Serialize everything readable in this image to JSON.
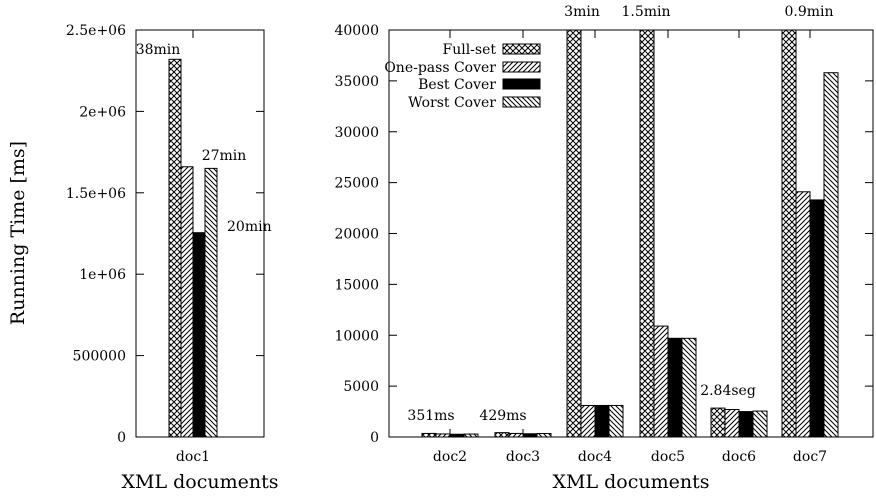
{
  "chart_data": [
    {
      "type": "bar",
      "panel": "left",
      "xlabel": "XML documents",
      "ylabel": "Running Time [ms]",
      "ylim": [
        0,
        2500000
      ],
      "yticks": [
        "0",
        "500000",
        "1e+06",
        "1.5e+06",
        "2e+06",
        "2.5e+06"
      ],
      "ytick_values": [
        0,
        500000,
        1000000,
        1500000,
        2000000,
        2500000
      ],
      "categories": [
        "doc1"
      ],
      "series": [
        {
          "name": "Full-set",
          "values": [
            2320000
          ]
        },
        {
          "name": "One-pass Cover",
          "values": [
            1660000
          ]
        },
        {
          "name": "Best Cover",
          "values": [
            1255000
          ]
        },
        {
          "name": "Worst Cover",
          "values": [
            1650000
          ]
        }
      ],
      "annotations": [
        "38min",
        "27min",
        "20min"
      ]
    },
    {
      "type": "bar",
      "panel": "right",
      "xlabel": "XML documents",
      "ylim": [
        0,
        40000
      ],
      "yticks": [
        "0",
        "5000",
        "10000",
        "15000",
        "20000",
        "25000",
        "30000",
        "35000",
        "40000"
      ],
      "ytick_values": [
        0,
        5000,
        10000,
        15000,
        20000,
        25000,
        30000,
        35000,
        40000
      ],
      "categories": [
        "doc2",
        "doc3",
        "doc4",
        "doc5",
        "doc6",
        "doc7"
      ],
      "series": [
        {
          "name": "Full-set",
          "values": [
            351,
            429,
            40000,
            40000,
            2840,
            40000
          ]
        },
        {
          "name": "One-pass Cover",
          "values": [
            300,
            350,
            3100,
            10900,
            2700,
            24100
          ]
        },
        {
          "name": "Best Cover",
          "values": [
            270,
            320,
            3100,
            9700,
            2500,
            23300
          ]
        },
        {
          "name": "Worst Cover",
          "values": [
            290,
            340,
            3100,
            9700,
            2550,
            35800
          ]
        }
      ],
      "legend": [
        "Full-set",
        "One-pass Cover",
        "Best Cover",
        "Worst Cover"
      ],
      "legend_position": "top-left",
      "annotations": [
        "351ms",
        "429ms",
        "3min",
        "1.5min",
        "2.84seg",
        "0.9min"
      ]
    }
  ]
}
